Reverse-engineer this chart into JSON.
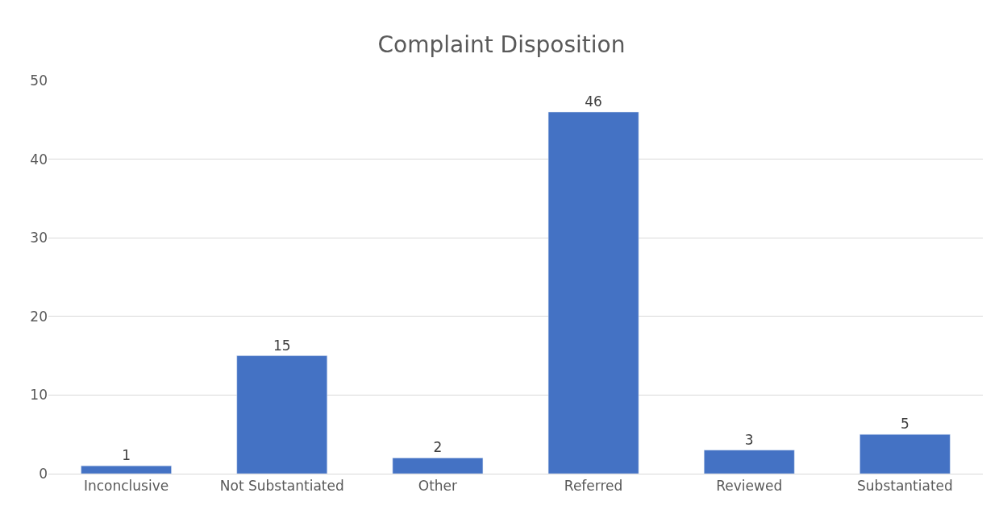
{
  "chart_data": {
    "type": "bar",
    "title": "Complaint Disposition",
    "categories": [
      "Inconclusive",
      "Not Substantiated",
      "Other",
      "Referred",
      "Reviewed",
      "Substantiated"
    ],
    "values": [
      1,
      15,
      2,
      46,
      3,
      5
    ],
    "color": "#4472c4",
    "ylim": [
      0,
      50
    ],
    "yticks": [
      0,
      10,
      20,
      30,
      40,
      50
    ],
    "grid": "y",
    "data_labels": true,
    "legend": false
  }
}
